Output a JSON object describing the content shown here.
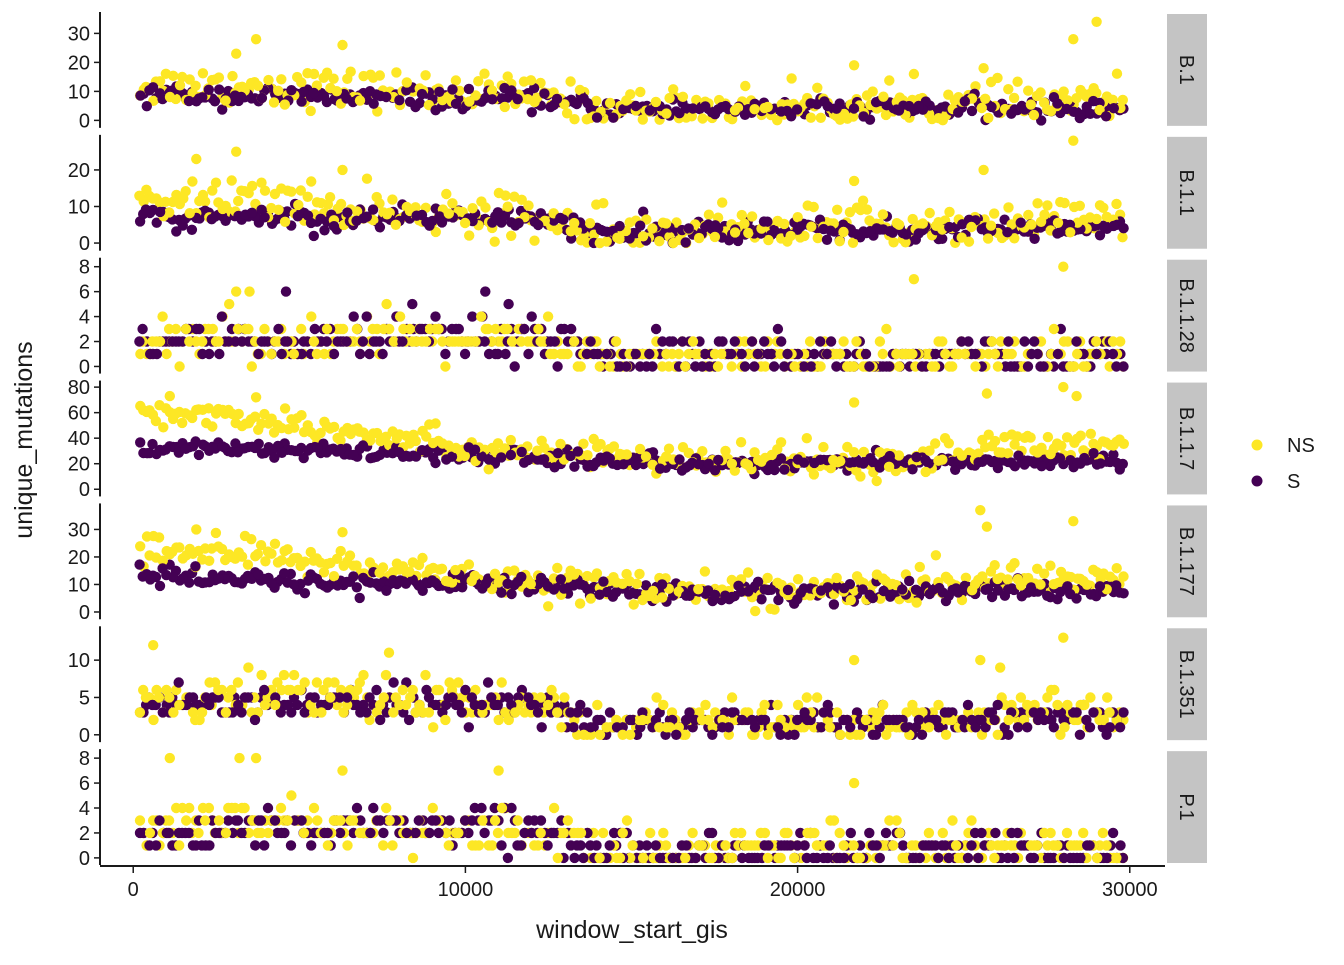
{
  "chart_data": {
    "type": "scatter",
    "xlabel": "window_start_gis",
    "ylabel": "unique_mutations",
    "xlim": [
      -1000,
      31000
    ],
    "x_ticks": [
      0,
      10000,
      20000,
      30000
    ],
    "x_tick_labels": [
      "0",
      "10000",
      "20000",
      "30000"
    ],
    "x_range": [
      200,
      29800
    ],
    "legend": {
      "position": "right",
      "entries": [
        {
          "label": "NS",
          "color": "#fde725"
        },
        {
          "label": "S",
          "color": "#440154"
        }
      ]
    },
    "panels": [
      {
        "label": "B.1",
        "ylim": [
          -1.2,
          36
        ],
        "y_ticks": [
          0,
          10,
          20,
          30
        ],
        "y_tick_labels": [
          "0",
          "10",
          "20",
          "30"
        ],
        "NS": {
          "trend": [
            [
              0,
              12
            ],
            [
              3000,
              12
            ],
            [
              9000,
              10
            ],
            [
              12500,
              8
            ],
            [
              14000,
              4
            ],
            [
              20000,
              5
            ],
            [
              24000,
              5
            ],
            [
              27000,
              6
            ],
            [
              29800,
              7
            ]
          ],
          "spread": 5.5,
          "max": 34
        },
        "S": {
          "trend": [
            [
              0,
              9
            ],
            [
              12500,
              7
            ],
            [
              14000,
              4
            ],
            [
              29800,
              4
            ]
          ],
          "spread": 2.8,
          "max": 16
        },
        "highlights": {
          "NS": [
            [
              3700,
              28
            ],
            [
              6300,
              26
            ],
            [
              25600,
              18
            ],
            [
              28300,
              28
            ],
            [
              29000,
              34
            ],
            [
              21700,
              19
            ],
            [
              23500,
              16
            ],
            [
              3100,
              23
            ]
          ]
        }
      },
      {
        "label": "B.1.1",
        "ylim": [
          -1.0,
          28.5
        ],
        "y_ticks": [
          0,
          10,
          20
        ],
        "y_tick_labels": [
          "0",
          "10",
          "20"
        ],
        "NS": {
          "trend": [
            [
              0,
              11
            ],
            [
              3000,
              12
            ],
            [
              9000,
              8
            ],
            [
              12500,
              7
            ],
            [
              14000,
              4
            ],
            [
              20000,
              4
            ],
            [
              24000,
              5
            ],
            [
              27000,
              6
            ],
            [
              29800,
              6
            ]
          ],
          "spread": 5.0,
          "max": 28
        },
        "S": {
          "trend": [
            [
              0,
              7
            ],
            [
              12500,
              7
            ],
            [
              14000,
              3
            ],
            [
              29800,
              4
            ]
          ],
          "spread": 2.6,
          "max": 14
        },
        "highlights": {
          "NS": [
            [
              3100,
              25
            ],
            [
              1900,
              23
            ],
            [
              6300,
              20
            ],
            [
              28300,
              28
            ],
            [
              25600,
              20
            ],
            [
              21700,
              17
            ]
          ]
        }
      },
      {
        "label": "B.1.1.28",
        "ylim": [
          -0.25,
          8.4
        ],
        "y_ticks": [
          0,
          2,
          4,
          6,
          8
        ],
        "y_tick_labels": [
          "0",
          "2",
          "4",
          "6",
          "8"
        ],
        "NS": {
          "trend": [
            [
              0,
              2.5
            ],
            [
              9000,
              2.2
            ],
            [
              12500,
              1.8
            ],
            [
              14000,
              0.7
            ],
            [
              24000,
              0.7
            ],
            [
              29800,
              1
            ]
          ],
          "spread": 1.4,
          "max": 8,
          "integer": true
        },
        "S": {
          "trend": [
            [
              0,
              2.0
            ],
            [
              12500,
              2.2
            ],
            [
              14000,
              0.6
            ],
            [
              29800,
              0.8
            ]
          ],
          "spread": 1.4,
          "max": 6,
          "integer": true
        },
        "highlights": {
          "S": [
            [
              4600,
              6
            ],
            [
              10600,
              6
            ],
            [
              8400,
              5
            ],
            [
              11300,
              5
            ]
          ],
          "NS": [
            [
              23500,
              7
            ],
            [
              28000,
              8
            ],
            [
              3100,
              6
            ],
            [
              3500,
              6
            ]
          ]
        }
      },
      {
        "label": "B.1.1.7",
        "ylim": [
          -2.5,
          82
        ],
        "y_ticks": [
          0,
          20,
          40,
          60,
          80
        ],
        "y_tick_labels": [
          "0",
          "20",
          "40",
          "60",
          "80"
        ],
        "NS": {
          "trend": [
            [
              0,
              60
            ],
            [
              3000,
              58
            ],
            [
              7000,
              45
            ],
            [
              10000,
              33
            ],
            [
              13000,
              28
            ],
            [
              16000,
              22
            ],
            [
              20000,
              22
            ],
            [
              24000,
              24
            ],
            [
              26000,
              34
            ],
            [
              29800,
              35
            ]
          ],
          "spread": 10,
          "max": 80
        },
        "S": {
          "trend": [
            [
              0,
              33
            ],
            [
              5000,
              30
            ],
            [
              12500,
              25
            ],
            [
              16000,
              20
            ],
            [
              29800,
              22
            ]
          ],
          "spread": 5,
          "max": 45
        },
        "highlights": {
          "NS": [
            [
              28000,
              80
            ],
            [
              1100,
              73
            ],
            [
              3700,
              72
            ],
            [
              28400,
              73
            ],
            [
              21700,
              68
            ],
            [
              25700,
              75
            ]
          ]
        }
      },
      {
        "label": "B.1.177",
        "ylim": [
          -1.2,
          38
        ],
        "y_ticks": [
          0,
          10,
          20,
          30
        ],
        "y_tick_labels": [
          "0",
          "10",
          "20",
          "30"
        ],
        "NS": {
          "trend": [
            [
              0,
              22
            ],
            [
              3000,
              22
            ],
            [
              7000,
              16
            ],
            [
              10000,
              13
            ],
            [
              13000,
              11
            ],
            [
              16000,
              8
            ],
            [
              20000,
              8
            ],
            [
              24000,
              9
            ],
            [
              26000,
              12
            ],
            [
              29800,
              13
            ]
          ],
          "spread": 5,
          "max": 37
        },
        "S": {
          "trend": [
            [
              0,
              13
            ],
            [
              5000,
              11
            ],
            [
              12500,
              10
            ],
            [
              16000,
              7
            ],
            [
              29800,
              8
            ]
          ],
          "spread": 3,
          "max": 20
        },
        "highlights": {
          "NS": [
            [
              25500,
              37
            ],
            [
              28300,
              33
            ],
            [
              1900,
              30
            ],
            [
              6300,
              29
            ],
            [
              25700,
              31
            ]
          ]
        }
      },
      {
        "label": "B.1.351",
        "ylim": [
          -0.45,
          14
        ],
        "y_ticks": [
          0,
          5,
          10
        ],
        "y_tick_labels": [
          "0",
          "5",
          "10"
        ],
        "NS": {
          "trend": [
            [
              0,
              5
            ],
            [
              6000,
              5
            ],
            [
              12500,
              4
            ],
            [
              14000,
              1.5
            ],
            [
              20000,
              1.5
            ],
            [
              24000,
              2
            ],
            [
              27000,
              3
            ],
            [
              29800,
              3
            ]
          ],
          "spread": 2.3,
          "max": 13,
          "integer": true
        },
        "S": {
          "trend": [
            [
              0,
              4
            ],
            [
              12500,
              4
            ],
            [
              14000,
              1.5
            ],
            [
              29800,
              2
            ]
          ],
          "spread": 1.8,
          "max": 8,
          "integer": true
        },
        "highlights": {
          "NS": [
            [
              28000,
              13
            ],
            [
              600,
              12
            ],
            [
              7700,
              11
            ],
            [
              21700,
              10
            ],
            [
              25500,
              10
            ],
            [
              26100,
              9
            ]
          ]
        }
      },
      {
        "label": "P.1",
        "ylim": [
          -0.25,
          8.4
        ],
        "y_ticks": [
          0,
          2,
          4,
          6,
          8
        ],
        "y_tick_labels": [
          "0",
          "2",
          "4",
          "6",
          "8"
        ],
        "NS": {
          "trend": [
            [
              0,
              3
            ],
            [
              9000,
              2.5
            ],
            [
              12500,
              2
            ],
            [
              14000,
              0.8
            ],
            [
              24000,
              0.8
            ],
            [
              29800,
              1
            ]
          ],
          "spread": 1.5,
          "max": 8,
          "integer": true
        },
        "S": {
          "trend": [
            [
              0,
              2.2
            ],
            [
              12500,
              2.5
            ],
            [
              14000,
              0.5
            ],
            [
              29800,
              0.6
            ]
          ],
          "spread": 1.3,
          "max": 6,
          "integer": true
        },
        "highlights": {
          "NS": [
            [
              1100,
              8
            ],
            [
              3200,
              8
            ],
            [
              3700,
              8
            ],
            [
              6300,
              7
            ],
            [
              11000,
              7
            ],
            [
              21700,
              6
            ]
          ]
        }
      }
    ]
  }
}
